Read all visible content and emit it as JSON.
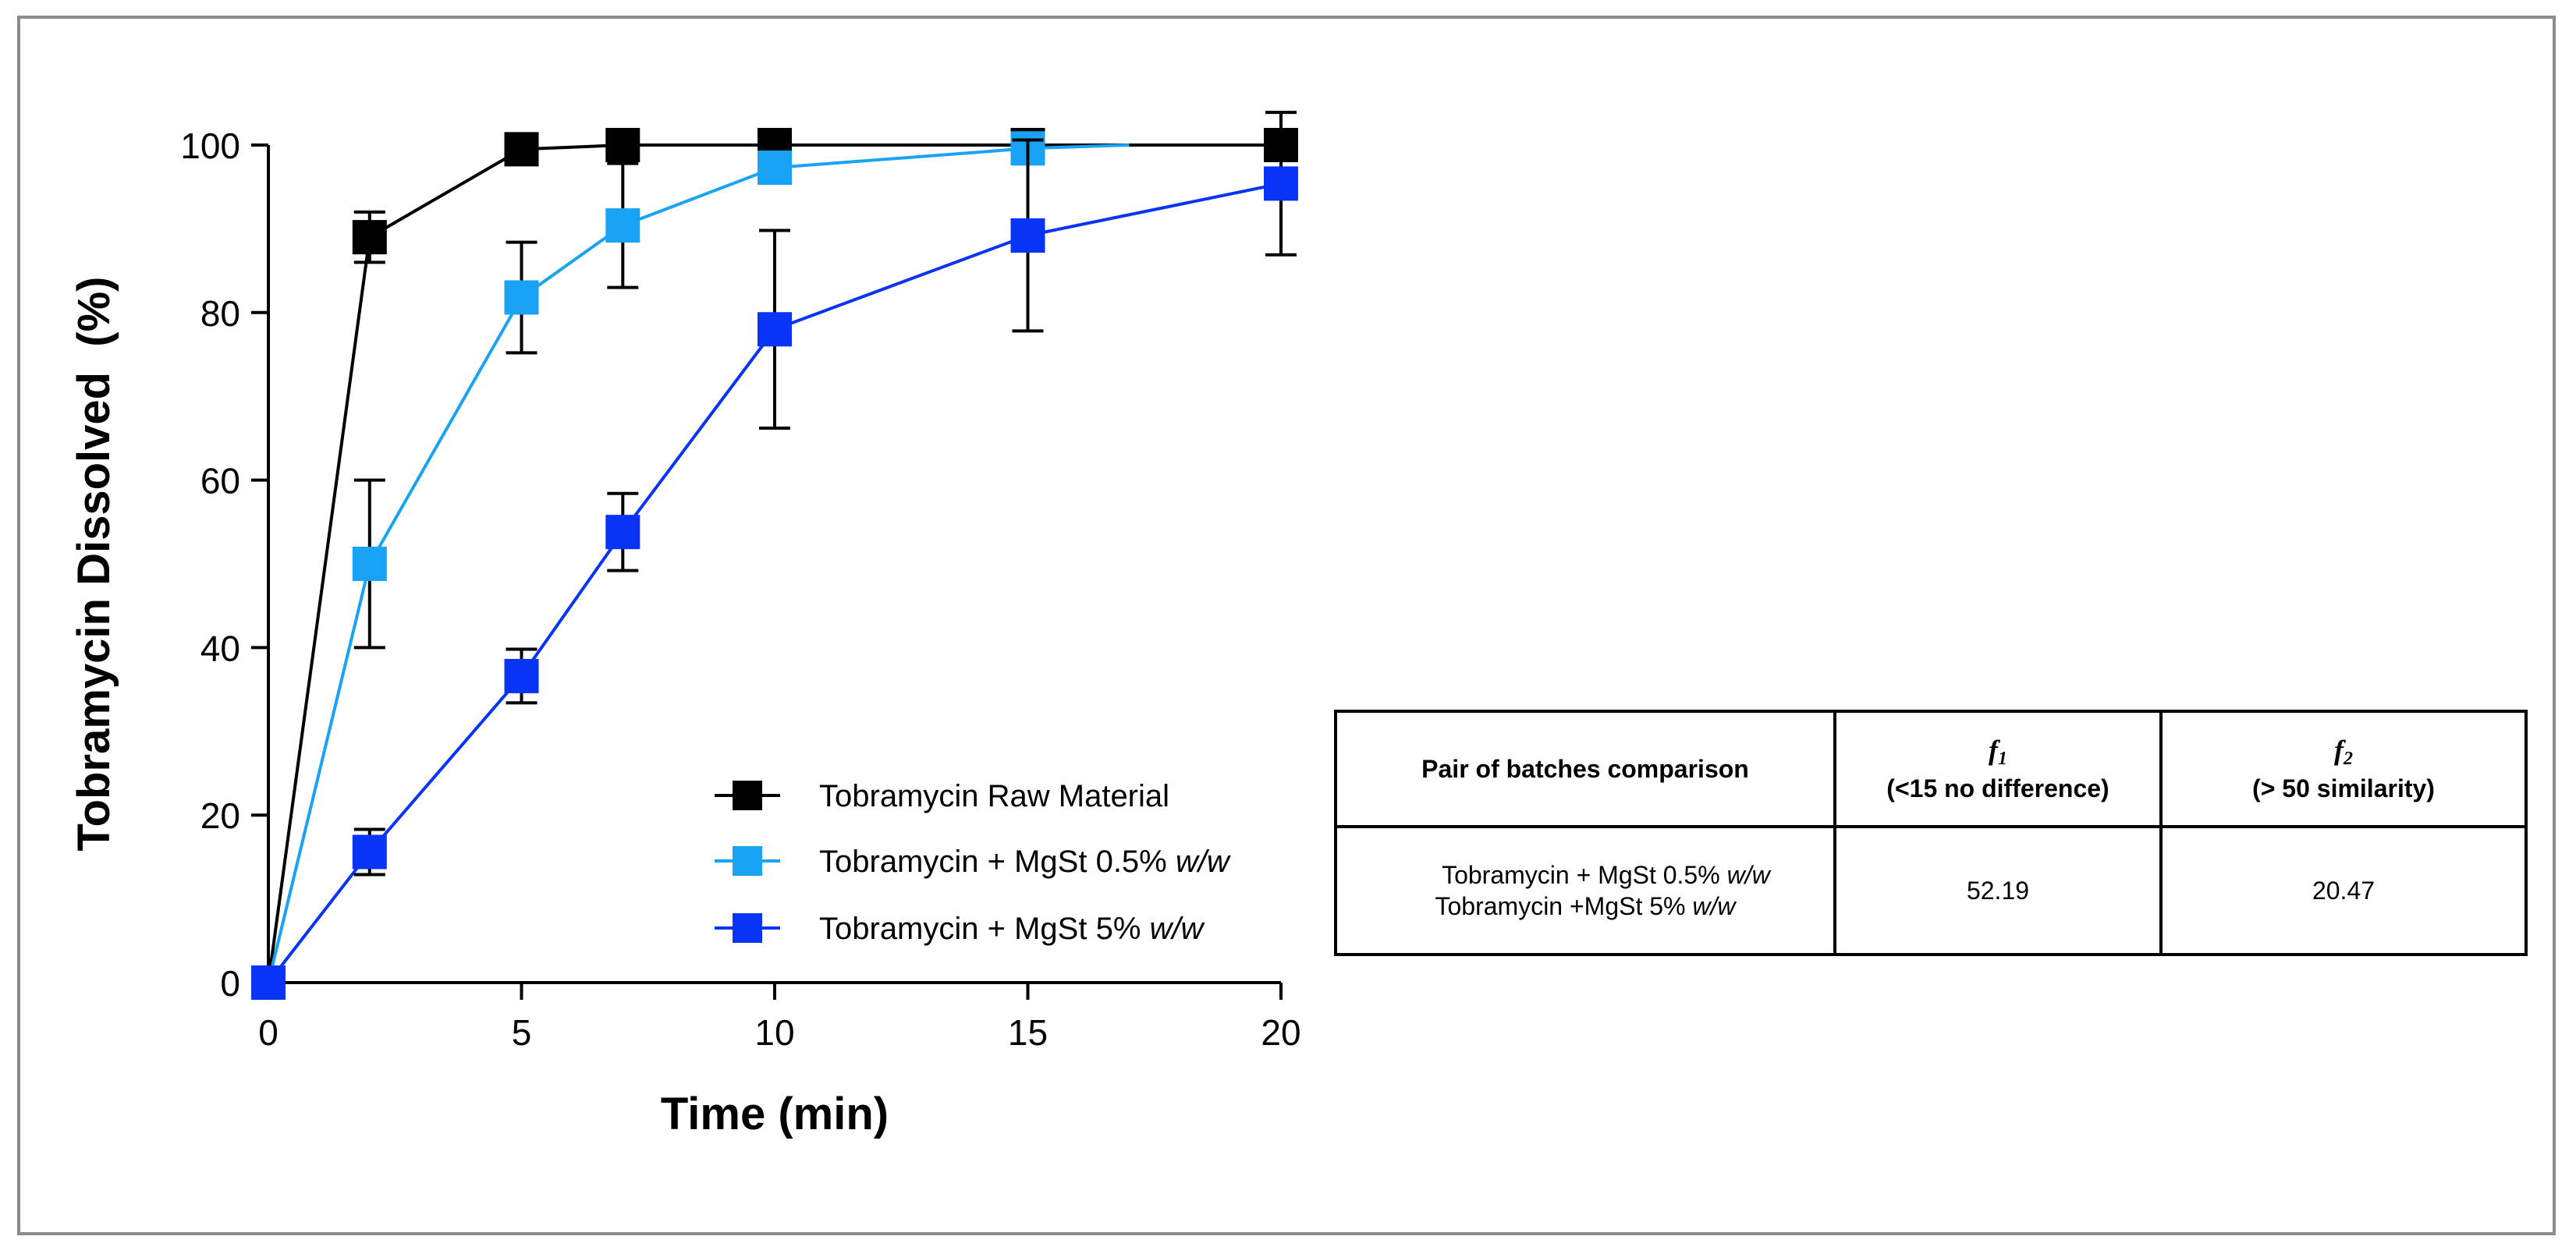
{
  "chart_data": {
    "type": "line",
    "title": "",
    "xlabel": "Time (min)",
    "ylabel": "Tobramycin Dissolved  (%)",
    "xlim": [
      0,
      20
    ],
    "ylim": [
      0,
      100
    ],
    "xticks": [
      0,
      5,
      10,
      15,
      20
    ],
    "yticks": [
      0,
      20,
      40,
      60,
      80,
      100
    ],
    "xtick_labels": [
      "0",
      "5",
      "10",
      "15",
      "20"
    ],
    "ytick_labels": [
      "0",
      "20",
      "40",
      "60",
      "80",
      "100"
    ],
    "grid": false,
    "legend_position": "bottom-right of plot area",
    "series": [
      {
        "name": "Tobramycin Raw Material",
        "legend_main": "Tobramycin Raw Material",
        "legend_italic": "",
        "color": "#000000",
        "x": [
          0,
          2,
          5,
          7,
          10,
          15,
          20
        ],
        "y": [
          0,
          89,
          99.5,
          100,
          100,
          100,
          100
        ],
        "error": [
          0,
          3,
          0,
          0,
          0,
          0,
          0
        ]
      },
      {
        "name": "Tobramycin + MgSt 0.5% w/w",
        "legend_main": "Tobramycin + MgSt 0.5% ",
        "legend_italic": "w/w",
        "color": "#1aa3f5",
        "x": [
          0,
          2,
          5,
          7,
          10,
          15,
          17
        ],
        "y": [
          0,
          50,
          81.8,
          90.4,
          97.3,
          99.6,
          100
        ],
        "error": [
          0,
          10,
          6.6,
          7.4,
          0,
          0,
          0
        ],
        "marker_count": 6
      },
      {
        "name": "Tobramycin + MgSt 5% w/w",
        "legend_main": "Tobramycin + MgSt 5% ",
        "legend_italic": "w/w",
        "color": "#0a34f5",
        "x": [
          0,
          2,
          5,
          7,
          10,
          15,
          20
        ],
        "y": [
          0,
          15.6,
          36.6,
          53.8,
          78,
          89.2,
          95.4
        ],
        "error": [
          0,
          2.7,
          3.2,
          4.6,
          11.8,
          11.4,
          8.5
        ]
      }
    ]
  },
  "table": {
    "header_col1": "Pair of batches comparison",
    "f1_symbol": "f",
    "f1_subscript": "1",
    "f1_note": "(<15 no difference)",
    "f2_symbol": "f",
    "f2_subscript": "2",
    "f2_note": "(> 50 similarity)",
    "row_line1_main": "Tobramycin + MgSt 0.5% ",
    "row_line1_italic": "w/w",
    "row_line2_main": "Tobramycin +MgSt 5% ",
    "row_line2_italic": "w/w",
    "f1_value": "52.19",
    "f2_value": "20.47"
  }
}
